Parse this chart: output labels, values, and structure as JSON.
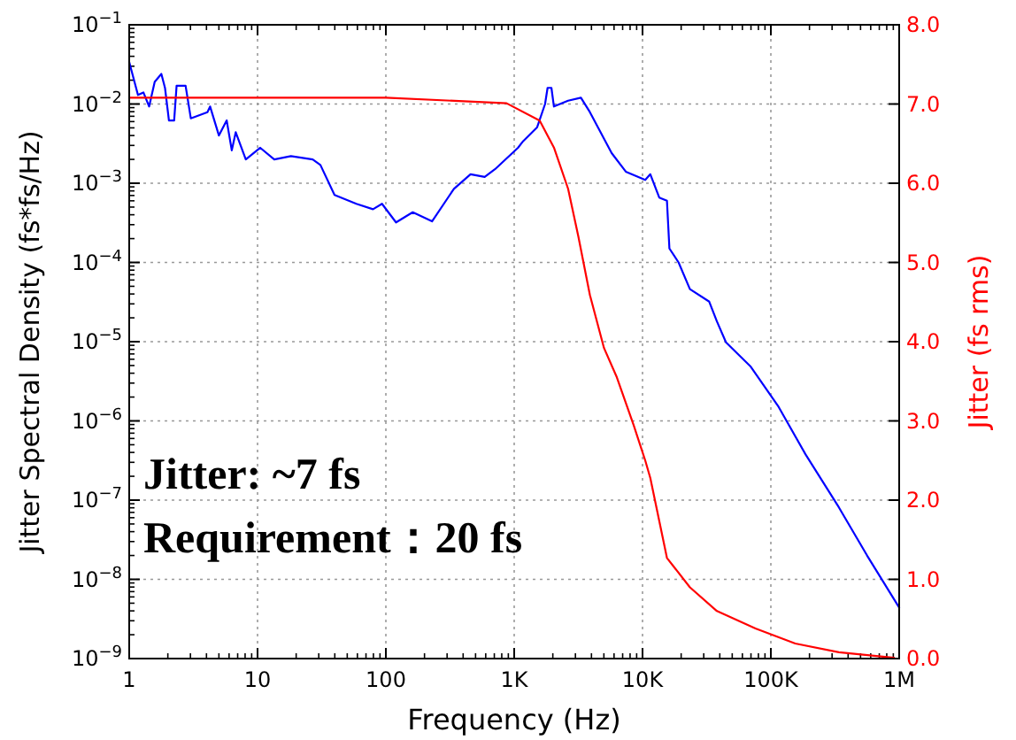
{
  "chart_data": {
    "type": "line",
    "xlabel": "Frequency (Hz)",
    "ylabel": "Jitter Spectral Density (fs*fs/Hz)",
    "y2label": "Jitter (fs rms)",
    "log": "xy",
    "grid": true,
    "marker": "none",
    "line_style": "solid",
    "xlim": [
      1,
      1000000
    ],
    "xticks": [
      1,
      10,
      100,
      {
        "value": 1000,
        "label": "1K"
      },
      {
        "value": 10000,
        "label": "10K"
      },
      {
        "value": 100000,
        "label": "100K"
      },
      {
        "value": 1000000,
        "label": "1M"
      }
    ],
    "ylim": [
      1e-09,
      0.1
    ],
    "yticks": [
      {
        "value": 1e-09,
        "label": "10$^{−9}$"
      },
      {
        "value": 1e-08,
        "label": "10$^{−8}$"
      },
      {
        "value": 1e-07,
        "label": "10$^{−7}$"
      },
      {
        "value": 1e-06,
        "label": "10$^{−6}$"
      },
      {
        "value": 1e-05,
        "label": "10$^{−5}$"
      },
      {
        "value": 0.0001,
        "label": "10$^{−4}$"
      },
      {
        "value": 0.001,
        "label": "10$^{−3}$"
      },
      {
        "value": 0.01,
        "label": "10$^{−2}$"
      },
      {
        "value": 0.1,
        "label": "10$^{−1}$"
      }
    ],
    "y2lim": [
      0,
      8
    ],
    "y2ticks": [
      {
        "value": 0,
        "label": "0.0"
      },
      {
        "value": 1,
        "label": "1.0"
      },
      {
        "value": 2,
        "label": "2.0"
      },
      {
        "value": 3,
        "label": "3.0"
      },
      {
        "value": 4,
        "label": "4.0"
      },
      {
        "value": 5,
        "label": "5.0"
      },
      {
        "value": 6,
        "label": "6.0"
      },
      {
        "value": 7,
        "label": "7.0"
      },
      {
        "value": 8,
        "label": "8.0"
      }
    ],
    "series": [
      {
        "color": "#0000ff",
        "x": [
          1,
          1.17,
          1.29,
          1.43,
          1.58,
          1.78,
          1.9,
          2.04,
          2.24,
          2.34,
          2.75,
          3.02,
          4.07,
          4.27,
          5.0,
          5.75,
          6.3,
          6.76,
          8.1,
          10.5,
          13.5,
          18.2,
          26.9,
          30.9,
          39.8,
          58.9,
          79.4,
          93.3,
          120,
          162,
          229,
          339,
          457,
          589,
          708,
          1070,
          1175,
          1510,
          1740,
          1820,
          1950,
          2040,
          2630,
          3310,
          3890,
          5750,
          7410,
          10500,
          11500,
          13500,
          15500,
          16200,
          19100,
          23400,
          33100,
          38000,
          44700,
          69200,
          115000,
          186000,
          339000,
          562000,
          1000000
        ],
        "values": [
          0.034,
          0.013,
          0.014,
          0.0093,
          0.019,
          0.024,
          0.016,
          0.0062,
          0.0062,
          0.017,
          0.017,
          0.0066,
          0.0079,
          0.0093,
          0.004,
          0.0062,
          0.0026,
          0.0044,
          0.002,
          0.0028,
          0.002,
          0.0022,
          0.002,
          0.0017,
          0.00071,
          0.00055,
          0.00047,
          0.00055,
          0.00032,
          0.00043,
          0.00033,
          0.00085,
          0.0013,
          0.0012,
          0.0015,
          0.0028,
          0.0034,
          0.0051,
          0.01,
          0.016,
          0.016,
          0.0093,
          0.011,
          0.012,
          0.0079,
          0.0024,
          0.0014,
          0.0011,
          0.0013,
          0.00066,
          0.0006,
          0.00015,
          0.0001,
          4.6e-05,
          3.2e-05,
          1.8e-05,
          9.8e-06,
          4.9e-06,
          1.5e-06,
          3.8e-07,
          8.1e-08,
          2e-08,
          4.4e-09
        ]
      },
      {
        "color": "#ff0000",
        "axis": "y2",
        "x": [
          1,
          100,
          871,
          1580,
          2040,
          2630,
          3160,
          3890,
          5010,
          6310,
          8510,
          10500,
          11500,
          15500,
          23400,
          38000,
          75900,
          155000,
          339000,
          912000
        ],
        "values": [
          7.08,
          7.08,
          7.01,
          6.79,
          6.45,
          5.93,
          5.33,
          4.59,
          3.92,
          3.55,
          2.95,
          2.5,
          2.28,
          1.27,
          0.9,
          0.6,
          0.38,
          0.19,
          0.08,
          0.01
        ]
      }
    ],
    "annotations": [
      "Jitter: ~7 fs",
      "Requirement：20 fs"
    ]
  }
}
